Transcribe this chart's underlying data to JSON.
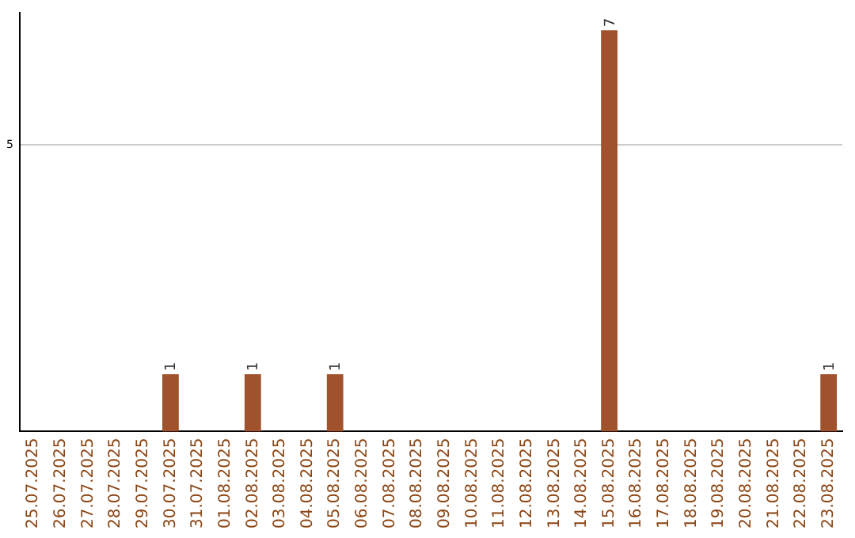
{
  "chart_data": {
    "type": "bar",
    "categories": [
      "25.07.2025",
      "26.07.2025",
      "27.07.2025",
      "28.07.2025",
      "29.07.2025",
      "30.07.2025",
      "31.07.2025",
      "01.08.2025",
      "02.08.2025",
      "03.08.2025",
      "04.08.2025",
      "05.08.2025",
      "06.08.2025",
      "07.08.2025",
      "08.08.2025",
      "09.08.2025",
      "10.08.2025",
      "11.08.2025",
      "12.08.2025",
      "13.08.2025",
      "14.08.2025",
      "15.08.2025",
      "16.08.2025",
      "17.08.2025",
      "18.08.2025",
      "19.08.2025",
      "20.08.2025",
      "21.08.2025",
      "22.08.2025",
      "23.08.2025"
    ],
    "values": [
      0,
      0,
      0,
      0,
      0,
      1,
      0,
      0,
      1,
      0,
      0,
      1,
      0,
      0,
      0,
      0,
      0,
      0,
      0,
      0,
      0,
      7,
      0,
      0,
      0,
      0,
      0,
      0,
      0,
      1
    ],
    "color": "#a0522d",
    "value_labels": [
      null,
      null,
      null,
      null,
      null,
      "1",
      null,
      null,
      "1",
      null,
      null,
      "1",
      null,
      null,
      null,
      null,
      null,
      null,
      null,
      null,
      null,
      "7",
      null,
      null,
      null,
      null,
      null,
      null,
      null,
      "1"
    ],
    "ylim": [
      0,
      7.3
    ],
    "yticks": [
      5
    ],
    "grid": "y",
    "legend": false
  }
}
